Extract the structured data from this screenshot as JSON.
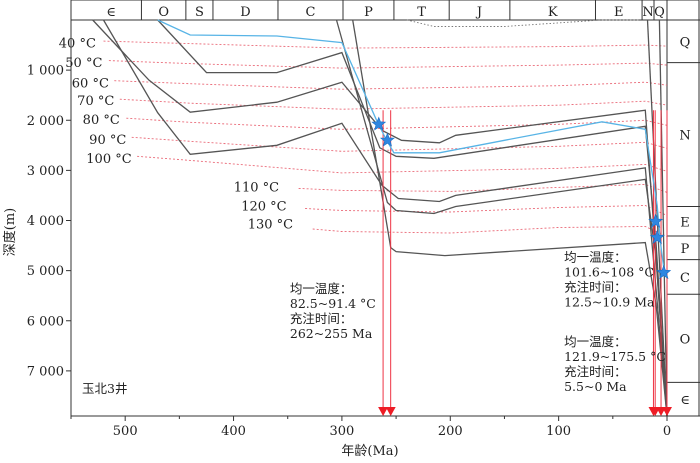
{
  "chart_data": {
    "type": "line",
    "title": "",
    "xlabel": "年龄(Ma)",
    "ylabel": "深度(m)",
    "xlim": [
      550,
      0
    ],
    "ylim": [
      0,
      7900
    ],
    "x_reversed": true,
    "y_reversed": true,
    "x_ticks": [
      500,
      400,
      300,
      200,
      100,
      0
    ],
    "x_tick_labels": [
      "500",
      "400",
      "300",
      "200",
      "100",
      "0"
    ],
    "y_ticks": [
      1000,
      2000,
      3000,
      4000,
      5000,
      6000,
      7000
    ],
    "y_tick_labels": [
      "1 000",
      "2 000",
      "3 000",
      "4 000",
      "5 000",
      "6 000",
      "7 000"
    ],
    "periods": [
      {
        "label": "∈",
        "start": 541,
        "end": 485
      },
      {
        "label": "O",
        "start": 485,
        "end": 444
      },
      {
        "label": "S",
        "start": 444,
        "end": 419
      },
      {
        "label": "D",
        "start": 419,
        "end": 359
      },
      {
        "label": "C",
        "start": 359,
        "end": 299
      },
      {
        "label": "P",
        "start": 299,
        "end": 252
      },
      {
        "label": "T",
        "start": 252,
        "end": 201
      },
      {
        "label": "J",
        "start": 201,
        "end": 145
      },
      {
        "label": "K",
        "start": 145,
        "end": 66
      },
      {
        "label": "E",
        "start": 66,
        "end": 23
      },
      {
        "label": "N",
        "start": 23,
        "end": 12
      },
      {
        "label": "Q",
        "start": 12,
        "end": 2
      }
    ],
    "strata": [
      {
        "label": "Q",
        "top": 0,
        "bottom": 850
      },
      {
        "label": "N",
        "top": 850,
        "bottom": 3720
      },
      {
        "label": "E",
        "top": 3720,
        "bottom": 4310
      },
      {
        "label": "P",
        "top": 4310,
        "bottom": 4780
      },
      {
        "label": "C",
        "top": 4780,
        "bottom": 5470
      },
      {
        "label": "O",
        "top": 5470,
        "bottom": 7230
      },
      {
        "label": "∈",
        "top": 7230,
        "bottom": 7900
      }
    ],
    "isotherm_labels": [
      {
        "label": "40 °C",
        "x": 527,
        "y": 470
      },
      {
        "label": "50 °C",
        "x": 521,
        "y": 860
      },
      {
        "label": "60 °C",
        "x": 515,
        "y": 1270
      },
      {
        "label": "70 °C",
        "x": 510,
        "y": 1620
      },
      {
        "label": "80 °C",
        "x": 505,
        "y": 1990
      },
      {
        "label": "90 °C",
        "x": 499,
        "y": 2390
      },
      {
        "label": "100 °C",
        "x": 494,
        "y": 2770
      },
      {
        "label": "110 °C",
        "x": 358,
        "y": 3340
      },
      {
        "label": "120 °C",
        "x": 351,
        "y": 3720
      },
      {
        "label": "130 °C",
        "x": 345,
        "y": 4080
      }
    ],
    "isotherms": [
      {
        "name": "40 °C",
        "x": [
          520,
          440,
          300,
          100,
          20,
          0
        ],
        "y": [
          420,
          470,
          560,
          530,
          500,
          520
        ]
      },
      {
        "name": "50 °C",
        "x": [
          515,
          440,
          300,
          100,
          20,
          0
        ],
        "y": [
          810,
          870,
          960,
          900,
          860,
          900
        ]
      },
      {
        "name": "60 °C",
        "x": [
          510,
          440,
          300,
          100,
          20,
          0
        ],
        "y": [
          1210,
          1270,
          1380,
          1310,
          1240,
          1300
        ]
      },
      {
        "name": "70 °C",
        "x": [
          505,
          440,
          300,
          100,
          20,
          0
        ],
        "y": [
          1580,
          1660,
          1780,
          1700,
          1620,
          1700
        ]
      },
      {
        "name": "80 °C",
        "x": [
          499,
          440,
          300,
          100,
          20,
          0
        ],
        "y": [
          1960,
          2040,
          2180,
          2080,
          2000,
          2100
        ]
      },
      {
        "name": "90 °C",
        "x": [
          494,
          440,
          300,
          100,
          20,
          0
        ],
        "y": [
          2340,
          2420,
          2620,
          2520,
          2440,
          2560
        ]
      },
      {
        "name": "100 °C",
        "x": [
          489,
          440,
          300,
          100,
          20,
          0
        ],
        "y": [
          2720,
          2800,
          3050,
          2960,
          2880,
          3020
        ]
      },
      {
        "name": "110 °C",
        "x": [
          340,
          300,
          200,
          100,
          20,
          0
        ],
        "y": [
          3360,
          3400,
          3420,
          3340,
          3280,
          3440
        ]
      },
      {
        "name": "120 °C",
        "x": [
          334,
          300,
          200,
          100,
          20,
          0
        ],
        "y": [
          3760,
          3800,
          3830,
          3740,
          3700,
          3900
        ]
      },
      {
        "name": "130 °C",
        "x": [
          327,
          300,
          200,
          100,
          20,
          0
        ],
        "y": [
          4170,
          4220,
          4250,
          4140,
          4120,
          4320
        ]
      }
    ],
    "burial_curves": [
      {
        "x": [
          530,
          478,
          440,
          360,
          300,
          263,
          245,
          210,
          195,
          20,
          10,
          0
        ],
        "y": [
          0,
          1200,
          1840,
          1640,
          1240,
          2200,
          2400,
          2450,
          2300,
          1800,
          4800,
          7900
        ]
      },
      {
        "x": [
          520,
          470,
          440,
          360,
          300,
          263,
          248,
          210,
          195,
          20,
          10,
          0
        ],
        "y": [
          0,
          1850,
          2680,
          2500,
          2060,
          3300,
          3560,
          3620,
          3500,
          2950,
          5400,
          7900
        ]
      },
      {
        "x": [
          470,
          425,
          360,
          300,
          265,
          250,
          215,
          20,
          10,
          0
        ],
        "y": [
          0,
          1050,
          1050,
          650,
          2550,
          2720,
          2760,
          2120,
          4500,
          7900
        ]
      },
      {
        "x": [
          305,
          258,
          250,
          215,
          195,
          20,
          10,
          0
        ],
        "y": [
          0,
          3640,
          3800,
          3860,
          3720,
          3180,
          4760,
          7900
        ]
      },
      {
        "x": [
          290,
          255,
          250,
          205,
          20,
          10,
          0
        ],
        "y": [
          0,
          4540,
          4620,
          4700,
          4440,
          5700,
          7900
        ]
      },
      {
        "x": [
          18,
          0
        ],
        "y": [
          0,
          7900
        ]
      },
      {
        "x": [
          7,
          0
        ],
        "y": [
          0,
          7900
        ]
      }
    ],
    "top_dotted_curve": {
      "x": [
        240,
        215,
        150,
        60,
        25
      ],
      "y": [
        0,
        130,
        130,
        0,
        0
      ]
    },
    "reservoir_curve": {
      "x": [
        470,
        440,
        360,
        300,
        268,
        260,
        252,
        210,
        150,
        60,
        20,
        9,
        6,
        2
      ],
      "y": [
        0,
        300,
        320,
        450,
        2000,
        2350,
        2650,
        2650,
        2400,
        2030,
        2180,
        3700,
        4450,
        5100
      ]
    },
    "charging_events": [
      {
        "age": 266,
        "depth": 2080,
        "marker": "star"
      },
      {
        "age": 258,
        "depth": 2400,
        "marker": "star"
      },
      {
        "age": 10.5,
        "depth": 4020,
        "marker": "star"
      },
      {
        "age": 9,
        "depth": 4340,
        "marker": "star"
      },
      {
        "age": 3,
        "depth": 5040,
        "marker": "star"
      }
    ],
    "charging_windows": [
      262,
      255,
      12.5,
      10.9,
      5.5,
      0
    ],
    "annotations": [
      {
        "lines": [
          "均一温度：",
          "82.5~91.4 °C",
          "充注时间：",
          "262~255 Ma"
        ],
        "x": 348,
        "y": 5450
      },
      {
        "lines": [
          "均一温度：",
          "101.6~108 °C",
          "充注时间：",
          "12.5~10.9 Ma"
        ],
        "x": 95,
        "y": 4820
      },
      {
        "lines": [
          "均一温度：",
          "121.9~175.5 °C",
          "充注时间：",
          "5.5~0 Ma"
        ],
        "x": 95,
        "y": 6500
      }
    ],
    "well_label": "玉北3井",
    "colors": {
      "isotherm": "#ea6a78",
      "burial": "#555555",
      "reservoir": "#58b4e6",
      "marker": "#2f86e0",
      "arrow": "#ee1c25"
    }
  }
}
